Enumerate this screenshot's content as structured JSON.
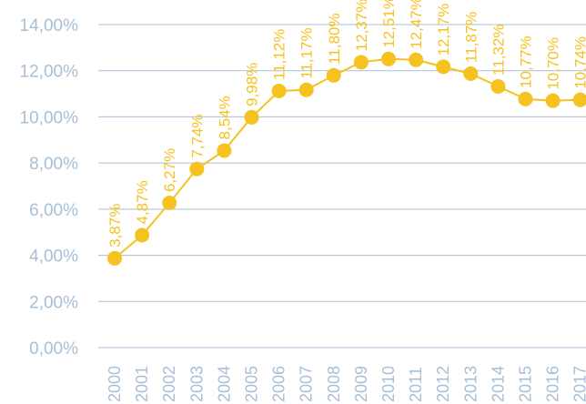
{
  "chart_data": {
    "type": "line",
    "title": "",
    "xlabel": "",
    "ylabel": "",
    "categories": [
      "2000",
      "2001",
      "2002",
      "2003",
      "2004",
      "2005",
      "2006",
      "2007",
      "2008",
      "2009",
      "2010",
      "2011",
      "2012",
      "2013",
      "2014",
      "2015",
      "2016",
      "2017"
    ],
    "series": [
      {
        "values": [
          3.87,
          4.87,
          6.27,
          7.74,
          8.54,
          9.98,
          11.12,
          11.17,
          11.8,
          12.37,
          12.51,
          12.47,
          12.17,
          11.87,
          11.32,
          10.77,
          10.7,
          10.74
        ],
        "labels": [
          "3,87%",
          "4,87%",
          "6,27%",
          "7,74%",
          "8,54%",
          "9,98%",
          "11,12%",
          "11,17%",
          "11,80%",
          "12,37%",
          "12,51%",
          "12,47%",
          "12,17%",
          "11,87%",
          "11,32%",
          "10,77%",
          "10,70%",
          "10,74%"
        ]
      }
    ],
    "yticks": [
      "0,00%",
      "2,00%",
      "4,00%",
      "6,00%",
      "8,00%",
      "10,00%",
      "12,00%",
      "14,00%"
    ],
    "ylim": [
      0,
      14
    ],
    "grid": true,
    "legend": "none",
    "colors": {
      "line": "#f5c220",
      "axis_text": "#a7bfd6",
      "grid": "#a7bfd6"
    }
  }
}
